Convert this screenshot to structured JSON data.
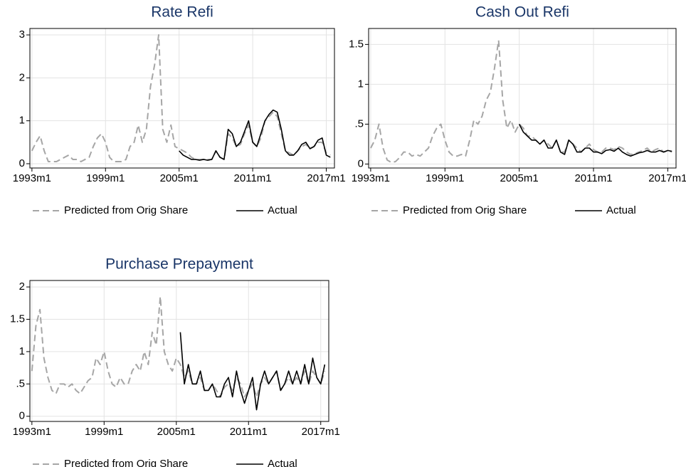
{
  "chart_data": [
    {
      "type": "line",
      "title": "Rate Refi",
      "x": [
        "1993m1",
        "1993m5",
        "1993m9",
        "1994m1",
        "1994m5",
        "1994m9",
        "1995m1",
        "1995m5",
        "1995m9",
        "1996m1",
        "1996m5",
        "1996m9",
        "1997m1",
        "1997m5",
        "1997m9",
        "1998m1",
        "1998m5",
        "1998m9",
        "1999m1",
        "1999m5",
        "1999m9",
        "2000m1",
        "2000m5",
        "2000m9",
        "2001m1",
        "2001m5",
        "2001m9",
        "2002m1",
        "2002m5",
        "2002m9",
        "2003m1",
        "2003m5",
        "2003m9",
        "2004m1",
        "2004m5",
        "2004m9",
        "2005m1",
        "2005m5",
        "2005m9",
        "2006m1",
        "2006m5",
        "2006m9",
        "2007m1",
        "2007m5",
        "2007m9",
        "2008m1",
        "2008m5",
        "2008m9",
        "2009m1",
        "2009m5",
        "2009m9",
        "2010m1",
        "2010m5",
        "2010m9",
        "2011m1",
        "2011m5",
        "2011m9",
        "2012m1",
        "2012m5",
        "2012m9",
        "2013m1",
        "2013m5",
        "2013m9",
        "2014m1",
        "2014m5",
        "2014m9",
        "2015m1",
        "2015m5",
        "2015m9",
        "2016m1",
        "2016m5",
        "2016m9",
        "2017m1",
        "2017m5"
      ],
      "series": [
        {
          "name": "Predicted from Orig Share",
          "color": "#a6a6a6",
          "style": "dashed",
          "values": [
            0.3,
            0.5,
            0.65,
            0.3,
            0.05,
            0.05,
            0.05,
            0.1,
            0.15,
            0.2,
            0.1,
            0.1,
            0.05,
            0.1,
            0.15,
            0.4,
            0.6,
            0.7,
            0.5,
            0.15,
            0.05,
            0.05,
            0.05,
            0.1,
            0.4,
            0.5,
            0.9,
            0.5,
            0.8,
            1.8,
            2.3,
            3.0,
            0.8,
            0.5,
            0.9,
            0.4,
            0.35,
            0.3,
            0.25,
            0.15,
            0.1,
            0.1,
            0.1,
            0.1,
            0.1,
            0.3,
            0.15,
            0.1,
            0.7,
            0.6,
            0.4,
            0.45,
            0.7,
            0.9,
            0.5,
            0.4,
            0.6,
            1.0,
            1.1,
            1.2,
            1.1,
            0.7,
            0.3,
            0.25,
            0.2,
            0.3,
            0.4,
            0.45,
            0.35,
            0.4,
            0.5,
            0.5,
            0.25,
            0.2
          ]
        },
        {
          "name": "Actual",
          "color": "#000000",
          "style": "solid",
          "values": [
            null,
            null,
            null,
            null,
            null,
            null,
            null,
            null,
            null,
            null,
            null,
            null,
            null,
            null,
            null,
            null,
            null,
            null,
            null,
            null,
            null,
            null,
            null,
            null,
            null,
            null,
            null,
            null,
            null,
            null,
            null,
            null,
            null,
            null,
            null,
            null,
            0.3,
            0.2,
            0.15,
            0.1,
            0.1,
            0.08,
            0.1,
            0.08,
            0.1,
            0.3,
            0.15,
            0.1,
            0.8,
            0.7,
            0.4,
            0.5,
            0.75,
            1.0,
            0.5,
            0.4,
            0.7,
            1.0,
            1.15,
            1.25,
            1.2,
            0.8,
            0.3,
            0.2,
            0.2,
            0.3,
            0.45,
            0.5,
            0.35,
            0.4,
            0.55,
            0.6,
            0.2,
            0.15
          ]
        }
      ],
      "xlim": [
        "1992m11",
        "2017m9"
      ],
      "xticks": [
        "1993m1",
        "1999m1",
        "2005m1",
        "2011m1",
        "2017m1"
      ],
      "ylim": [
        -0.1,
        3.15
      ],
      "yticks": [
        0,
        1,
        2,
        3
      ],
      "grid": true
    },
    {
      "type": "line",
      "title": "Cash Out Refi",
      "x": [
        "1993m1",
        "1993m5",
        "1993m9",
        "1994m1",
        "1994m5",
        "1994m9",
        "1995m1",
        "1995m5",
        "1995m9",
        "1996m1",
        "1996m5",
        "1996m9",
        "1997m1",
        "1997m5",
        "1997m9",
        "1998m1",
        "1998m5",
        "1998m9",
        "1999m1",
        "1999m5",
        "1999m9",
        "2000m1",
        "2000m5",
        "2000m9",
        "2001m1",
        "2001m5",
        "2001m9",
        "2002m1",
        "2002m5",
        "2002m9",
        "2003m1",
        "2003m5",
        "2003m9",
        "2004m1",
        "2004m5",
        "2004m9",
        "2005m1",
        "2005m5",
        "2005m9",
        "2006m1",
        "2006m5",
        "2006m9",
        "2007m1",
        "2007m5",
        "2007m9",
        "2008m1",
        "2008m5",
        "2008m9",
        "2009m1",
        "2009m5",
        "2009m9",
        "2010m1",
        "2010m5",
        "2010m9",
        "2011m1",
        "2011m5",
        "2011m9",
        "2012m1",
        "2012m5",
        "2012m9",
        "2013m1",
        "2013m5",
        "2013m9",
        "2014m1",
        "2014m5",
        "2014m9",
        "2015m1",
        "2015m5",
        "2015m9",
        "2016m1",
        "2016m5",
        "2016m9",
        "2017m1",
        "2017m5"
      ],
      "series": [
        {
          "name": "Predicted from Orig Share",
          "color": "#a6a6a6",
          "style": "dashed",
          "values": [
            0.2,
            0.3,
            0.5,
            0.2,
            0.05,
            0.02,
            0.03,
            0.08,
            0.15,
            0.15,
            0.1,
            0.12,
            0.1,
            0.15,
            0.2,
            0.35,
            0.45,
            0.5,
            0.3,
            0.15,
            0.1,
            0.1,
            0.12,
            0.1,
            0.3,
            0.55,
            0.5,
            0.6,
            0.8,
            0.9,
            1.2,
            1.55,
            0.8,
            0.45,
            0.55,
            0.4,
            0.5,
            0.45,
            0.35,
            0.35,
            0.3,
            0.25,
            0.3,
            0.25,
            0.2,
            0.3,
            0.15,
            0.15,
            0.3,
            0.25,
            0.2,
            0.15,
            0.2,
            0.25,
            0.18,
            0.15,
            0.15,
            0.2,
            0.2,
            0.18,
            0.22,
            0.2,
            0.15,
            0.12,
            0.13,
            0.15,
            0.17,
            0.2,
            0.15,
            0.18,
            0.2,
            0.15,
            0.17,
            0.15
          ]
        },
        {
          "name": "Actual",
          "color": "#000000",
          "style": "solid",
          "values": [
            null,
            null,
            null,
            null,
            null,
            null,
            null,
            null,
            null,
            null,
            null,
            null,
            null,
            null,
            null,
            null,
            null,
            null,
            null,
            null,
            null,
            null,
            null,
            null,
            null,
            null,
            null,
            null,
            null,
            null,
            null,
            null,
            null,
            null,
            null,
            null,
            0.5,
            0.4,
            0.35,
            0.3,
            0.3,
            0.25,
            0.3,
            0.2,
            0.2,
            0.3,
            0.15,
            0.12,
            0.3,
            0.25,
            0.15,
            0.15,
            0.2,
            0.2,
            0.15,
            0.15,
            0.13,
            0.17,
            0.18,
            0.16,
            0.2,
            0.15,
            0.12,
            0.1,
            0.12,
            0.14,
            0.15,
            0.17,
            0.15,
            0.15,
            0.17,
            0.15,
            0.17,
            0.16
          ]
        }
      ],
      "xlim": [
        "1992m11",
        "2017m9"
      ],
      "xticks": [
        "1993m1",
        "1999m1",
        "2005m1",
        "2011m1",
        "2017m1"
      ],
      "ylim": [
        -0.05,
        1.7
      ],
      "yticks": [
        0,
        {
          "value": 0.5,
          "label": ".5"
        },
        1,
        1.5
      ],
      "grid": true
    },
    {
      "type": "line",
      "title": "Purchase Prepayment",
      "x": [
        "1993m1",
        "1993m5",
        "1993m9",
        "1994m1",
        "1994m5",
        "1994m9",
        "1995m1",
        "1995m5",
        "1995m9",
        "1996m1",
        "1996m5",
        "1996m9",
        "1997m1",
        "1997m5",
        "1997m9",
        "1998m1",
        "1998m5",
        "1998m9",
        "1999m1",
        "1999m5",
        "1999m9",
        "2000m1",
        "2000m5",
        "2000m9",
        "2001m1",
        "2001m5",
        "2001m9",
        "2002m1",
        "2002m5",
        "2002m9",
        "2003m1",
        "2003m5",
        "2003m9",
        "2004m1",
        "2004m5",
        "2004m9",
        "2005m1",
        "2005m5",
        "2005m9",
        "2006m1",
        "2006m5",
        "2006m9",
        "2007m1",
        "2007m5",
        "2007m9",
        "2008m1",
        "2008m5",
        "2008m9",
        "2009m1",
        "2009m5",
        "2009m9",
        "2010m1",
        "2010m5",
        "2010m9",
        "2011m1",
        "2011m5",
        "2011m9",
        "2012m1",
        "2012m5",
        "2012m9",
        "2013m1",
        "2013m5",
        "2013m9",
        "2014m1",
        "2014m5",
        "2014m9",
        "2015m1",
        "2015m5",
        "2015m9",
        "2016m1",
        "2016m5",
        "2016m9",
        "2017m1",
        "2017m5"
      ],
      "series": [
        {
          "name": "Predicted from Orig Share",
          "color": "#a6a6a6",
          "style": "dashed",
          "values": [
            0.7,
            1.4,
            1.65,
            0.9,
            0.6,
            0.4,
            0.35,
            0.5,
            0.5,
            0.45,
            0.5,
            0.4,
            0.35,
            0.45,
            0.55,
            0.6,
            0.9,
            0.8,
            1.0,
            0.7,
            0.5,
            0.45,
            0.6,
            0.5,
            0.5,
            0.7,
            0.8,
            0.7,
            1.0,
            0.8,
            1.3,
            1.1,
            1.85,
            1.0,
            0.8,
            0.7,
            0.9,
            0.8,
            0.6,
            0.7,
            0.5,
            0.5,
            0.6,
            0.4,
            0.4,
            0.5,
            0.4,
            0.3,
            0.45,
            0.5,
            0.4,
            0.6,
            0.5,
            0.3,
            0.4,
            0.5,
            0.3,
            0.5,
            0.6,
            0.5,
            0.6,
            0.7,
            0.4,
            0.5,
            0.6,
            0.5,
            0.6,
            0.5,
            0.7,
            0.5,
            0.7,
            0.6,
            0.5,
            0.7
          ]
        },
        {
          "name": "Actual",
          "color": "#000000",
          "style": "solid",
          "values": [
            null,
            null,
            null,
            null,
            null,
            null,
            null,
            null,
            null,
            null,
            null,
            null,
            null,
            null,
            null,
            null,
            null,
            null,
            null,
            null,
            null,
            null,
            null,
            null,
            null,
            null,
            null,
            null,
            null,
            null,
            null,
            null,
            null,
            null,
            null,
            null,
            null,
            1.3,
            0.5,
            0.8,
            0.5,
            0.5,
            0.7,
            0.4,
            0.4,
            0.5,
            0.3,
            0.3,
            0.5,
            0.6,
            0.3,
            0.7,
            0.4,
            0.2,
            0.4,
            0.6,
            0.1,
            0.5,
            0.7,
            0.5,
            0.6,
            0.7,
            0.4,
            0.5,
            0.7,
            0.5,
            0.7,
            0.5,
            0.8,
            0.5,
            0.9,
            0.6,
            0.5,
            0.8
          ]
        }
      ],
      "xlim": [
        "1992m11",
        "2017m9"
      ],
      "xticks": [
        "1993m1",
        "1999m1",
        "2005m1",
        "2011m1",
        "2017m1"
      ],
      "ylim": [
        -0.08,
        2.1
      ],
      "yticks": [
        0,
        {
          "value": 0.5,
          "label": ".5"
        },
        1,
        1.5,
        2
      ],
      "grid": true
    }
  ]
}
